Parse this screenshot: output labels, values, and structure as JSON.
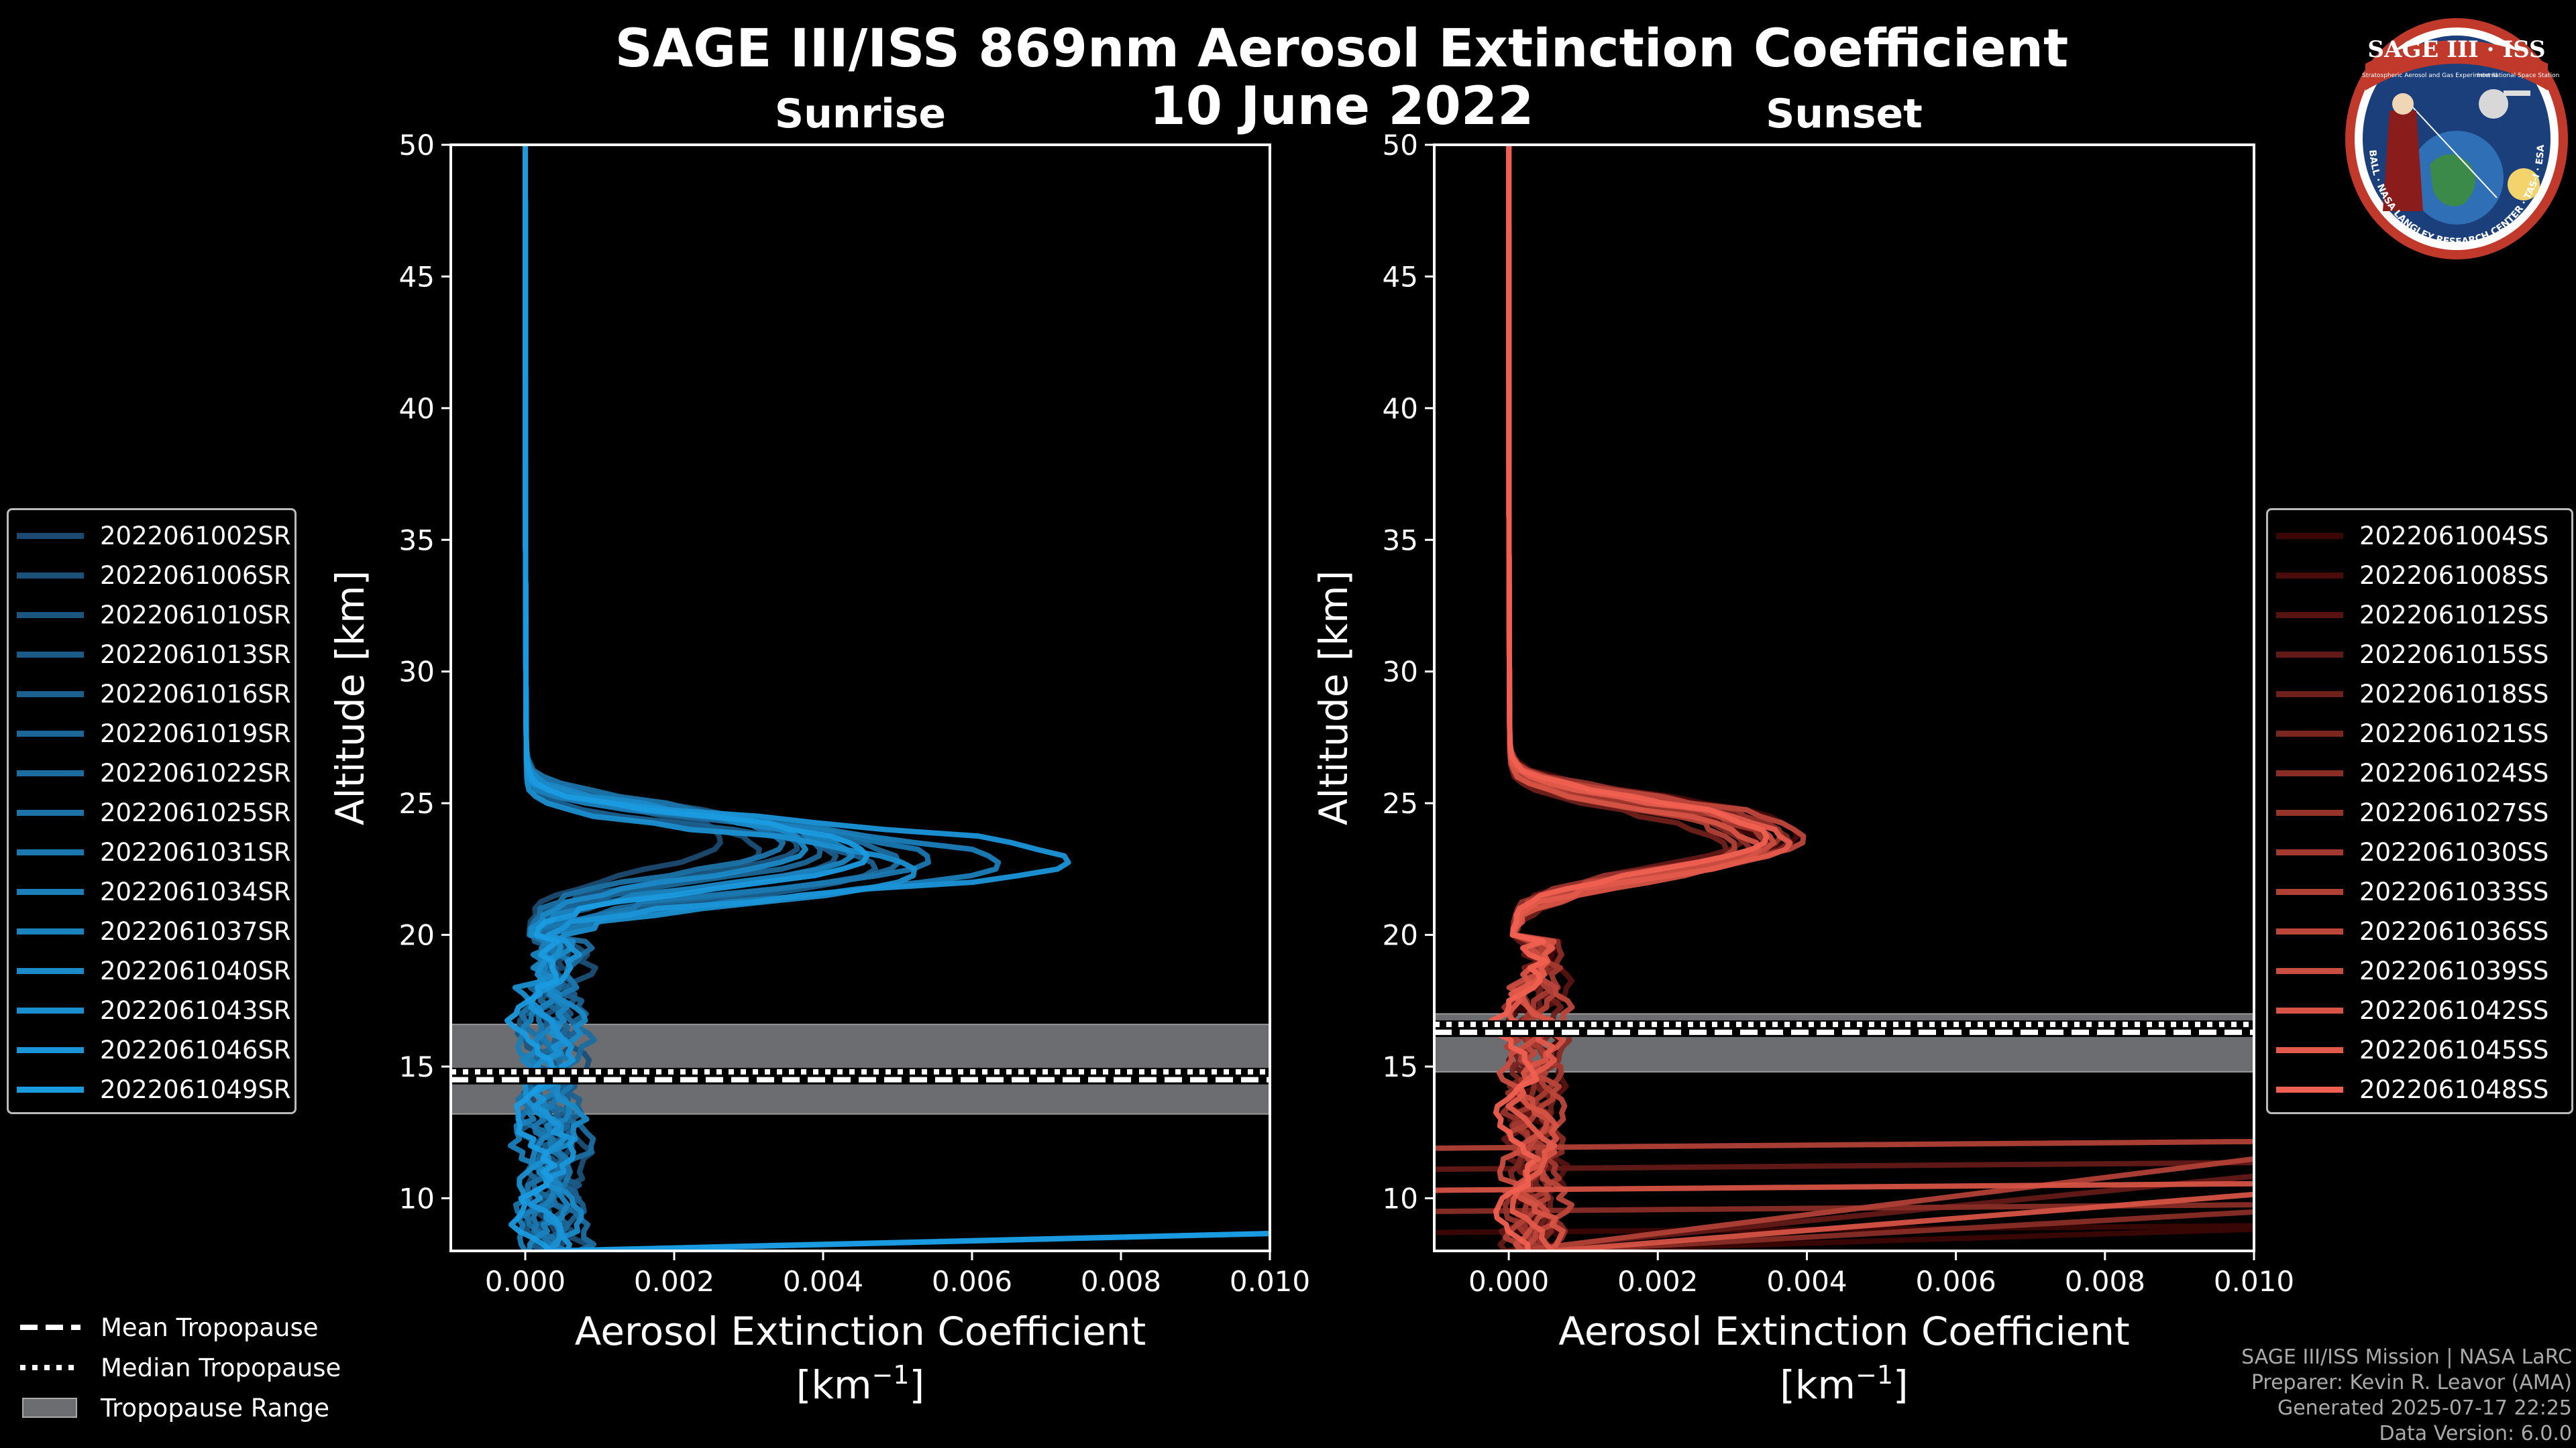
{
  "title_line1": "SAGE III/ISS 869nm Aerosol Extinction Coefficient",
  "title_line2": "10 June 2022",
  "logo": {
    "name": "SAGE III · ISS",
    "subtitle1": "Stratospheric Aerosol and Gas Experiment III",
    "subtitle2": "International Space Station",
    "ring_text": "BALL · NASA LANGLEY RESEARCH CENTER · TAS-I · ESA"
  },
  "footer": [
    "SAGE III/ISS Mission | NASA LaRC",
    "Preparer: Kevin R. Leavor (AMA)",
    "Generated 2025-07-17 22:25",
    "Data Version: 6.0.0"
  ],
  "tropopause_legend": {
    "mean": "Mean Tropopause",
    "median": "Median Tropopause",
    "range": "Tropopause Range"
  },
  "colors": {
    "sunrise_dark": "#1b4a70",
    "sunrise_light": "#1a9be0",
    "sunset_dark": "#3c0606",
    "sunset_light": "#f06050",
    "trop_range": "#6b6d70"
  },
  "chart_data": [
    {
      "type": "line",
      "title": "Sunrise",
      "xlabel": "Aerosol Extinction Coefficient",
      "xunits": "[km$^{-1}$]",
      "ylabel": "Altitude [km]",
      "xlim": [
        -0.001,
        0.01
      ],
      "ylim": [
        8,
        50
      ],
      "xticks": [
        "0.000",
        "0.002",
        "0.004",
        "0.006",
        "0.008",
        "0.010"
      ],
      "yticks": [
        "10",
        "15",
        "20",
        "25",
        "30",
        "35",
        "40",
        "45",
        "50"
      ],
      "tropopause": {
        "mean": 14.5,
        "median": 14.8,
        "range": [
          13.2,
          16.6
        ]
      },
      "series": [
        {
          "name": "2022061002SR",
          "peak_alt": 23.4,
          "peak_val": 0.0025,
          "low_val": 0.0003
        },
        {
          "name": "2022061006SR",
          "peak_alt": 23.0,
          "peak_val": 0.003,
          "low_val": 0.0006
        },
        {
          "name": "2022061010SR",
          "peak_alt": 23.2,
          "peak_val": 0.0035,
          "low_val": 0.0002
        },
        {
          "name": "2022061013SR",
          "peak_alt": 22.8,
          "peak_val": 0.004,
          "low_val": 0.0004
        },
        {
          "name": "2022061016SR",
          "peak_alt": 22.4,
          "peak_val": 0.0045,
          "low_val": 0.0005
        },
        {
          "name": "2022061019SR",
          "peak_alt": 23.0,
          "peak_val": 0.0038,
          "low_val": 0.0003
        },
        {
          "name": "2022061022SR",
          "peak_alt": 22.6,
          "peak_val": 0.0048,
          "low_val": 0.0006
        },
        {
          "name": "2022061025SR",
          "peak_alt": 23.3,
          "peak_val": 0.0033,
          "low_val": 0.0002
        },
        {
          "name": "2022061031SR",
          "peak_alt": 22.7,
          "peak_val": 0.0052,
          "low_val": 0.0004
        },
        {
          "name": "2022061034SR",
          "peak_alt": 22.5,
          "peak_val": 0.0061,
          "low_val": 0.0001
        },
        {
          "name": "2022061037SR",
          "peak_alt": 22.9,
          "peak_val": 0.0042,
          "low_val": 0.0003
        },
        {
          "name": "2022061040SR",
          "peak_alt": 23.1,
          "peak_val": 0.0036,
          "low_val": 0.0005
        },
        {
          "name": "2022061043SR",
          "peak_alt": 22.2,
          "peak_val": 0.005,
          "low_val": 0.0002
        },
        {
          "name": "2022061046SR",
          "peak_alt": 22.6,
          "peak_val": 0.007,
          "low_val": 0.0004
        },
        {
          "name": "2022061049SR",
          "peak_alt": 22.8,
          "peak_val": 0.0044,
          "low_val": 0.0001
        }
      ]
    },
    {
      "type": "line",
      "title": "Sunset",
      "xlabel": "Aerosol Extinction Coefficient",
      "xunits": "[km$^{-1}$]",
      "ylabel": "Altitude [km]",
      "xlim": [
        -0.001,
        0.01
      ],
      "ylim": [
        8,
        50
      ],
      "xticks": [
        "0.000",
        "0.002",
        "0.004",
        "0.006",
        "0.008",
        "0.010"
      ],
      "yticks": [
        "10",
        "15",
        "20",
        "25",
        "30",
        "35",
        "40",
        "45",
        "50"
      ],
      "tropopause": {
        "mean": 16.3,
        "median": 16.6,
        "range": [
          14.8,
          17.0
        ]
      },
      "series": [
        {
          "name": "2022061004SS",
          "peak_alt": 23.3,
          "peak_val": 0.0032,
          "low_val": 0.0004
        },
        {
          "name": "2022061008SS",
          "peak_alt": 23.6,
          "peak_val": 0.0037,
          "low_val": 0.0003
        },
        {
          "name": "2022061012SS",
          "peak_alt": 23.2,
          "peak_val": 0.0034,
          "low_val": 0.0005
        },
        {
          "name": "2022061015SS",
          "peak_alt": 23.5,
          "peak_val": 0.003,
          "low_val": 0.0002
        },
        {
          "name": "2022061018SS",
          "peak_alt": 23.0,
          "peak_val": 0.0028,
          "low_val": 0.0004
        },
        {
          "name": "2022061021SS",
          "peak_alt": 23.4,
          "peak_val": 0.0036,
          "low_val": 0.0003
        },
        {
          "name": "2022061024SS",
          "peak_alt": 23.1,
          "peak_val": 0.0031,
          "low_val": 0.0005
        },
        {
          "name": "2022061027SS",
          "peak_alt": 23.6,
          "peak_val": 0.0035,
          "low_val": 0.0002
        },
        {
          "name": "2022061030SS",
          "peak_alt": 23.3,
          "peak_val": 0.0033,
          "low_val": 0.0004
        },
        {
          "name": "2022061033SS",
          "peak_alt": 23.2,
          "peak_val": 0.0029,
          "low_val": 0.0003
        },
        {
          "name": "2022061036SS",
          "peak_alt": 23.5,
          "peak_val": 0.0038,
          "low_val": 0.0005
        },
        {
          "name": "2022061039SS",
          "peak_alt": 23.4,
          "peak_val": 0.0034,
          "low_val": 0.0002
        },
        {
          "name": "2022061042SS",
          "peak_alt": 23.1,
          "peak_val": 0.0032,
          "low_val": 0.0004
        },
        {
          "name": "2022061045SS",
          "peak_alt": 23.3,
          "peak_val": 0.0036,
          "low_val": 0.0003
        },
        {
          "name": "2022061048SS",
          "peak_alt": 23.5,
          "peak_val": 0.0033,
          "low_val": 0.0001
        }
      ]
    }
  ]
}
